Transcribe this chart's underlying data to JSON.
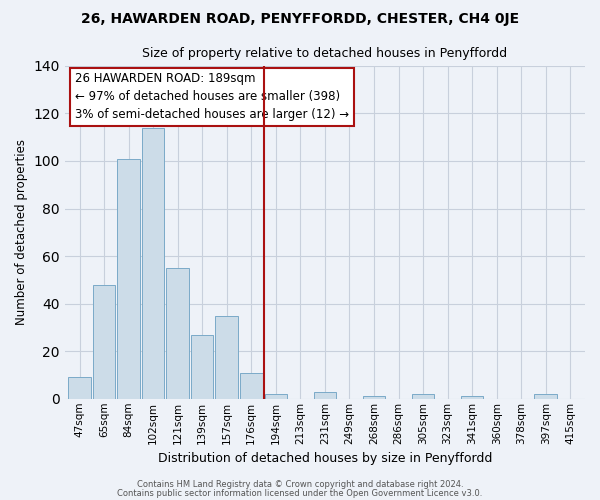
{
  "title": "26, HAWARDEN ROAD, PENYFFORDD, CHESTER, CH4 0JE",
  "subtitle": "Size of property relative to detached houses in Penyffordd",
  "xlabel": "Distribution of detached houses by size in Penyffordd",
  "ylabel": "Number of detached properties",
  "bar_labels": [
    "47sqm",
    "65sqm",
    "84sqm",
    "102sqm",
    "121sqm",
    "139sqm",
    "157sqm",
    "176sqm",
    "194sqm",
    "213sqm",
    "231sqm",
    "249sqm",
    "268sqm",
    "286sqm",
    "305sqm",
    "323sqm",
    "341sqm",
    "360sqm",
    "378sqm",
    "397sqm",
    "415sqm"
  ],
  "bar_values": [
    9,
    48,
    101,
    114,
    55,
    27,
    35,
    11,
    2,
    0,
    3,
    0,
    1,
    0,
    2,
    0,
    1,
    0,
    0,
    2,
    0
  ],
  "bar_color": "#ccdce8",
  "bar_edge_color": "#7aaac8",
  "ylim": [
    0,
    140
  ],
  "yticks": [
    0,
    20,
    40,
    60,
    80,
    100,
    120,
    140
  ],
  "vline_x": 7.5,
  "vline_color": "#aa1111",
  "annotation_title": "26 HAWARDEN ROAD: 189sqm",
  "annotation_line1": "← 97% of detached houses are smaller (398)",
  "annotation_line2": "3% of semi-detached houses are larger (12) →",
  "annotation_box_color": "#ffffff",
  "annotation_border_color": "#aa1111",
  "footer1": "Contains HM Land Registry data © Crown copyright and database right 2024.",
  "footer2": "Contains public sector information licensed under the Open Government Licence v3.0.",
  "bg_color": "#eef2f8",
  "plot_bg_color": "#eef2f8",
  "grid_color": "#c8d0dc"
}
